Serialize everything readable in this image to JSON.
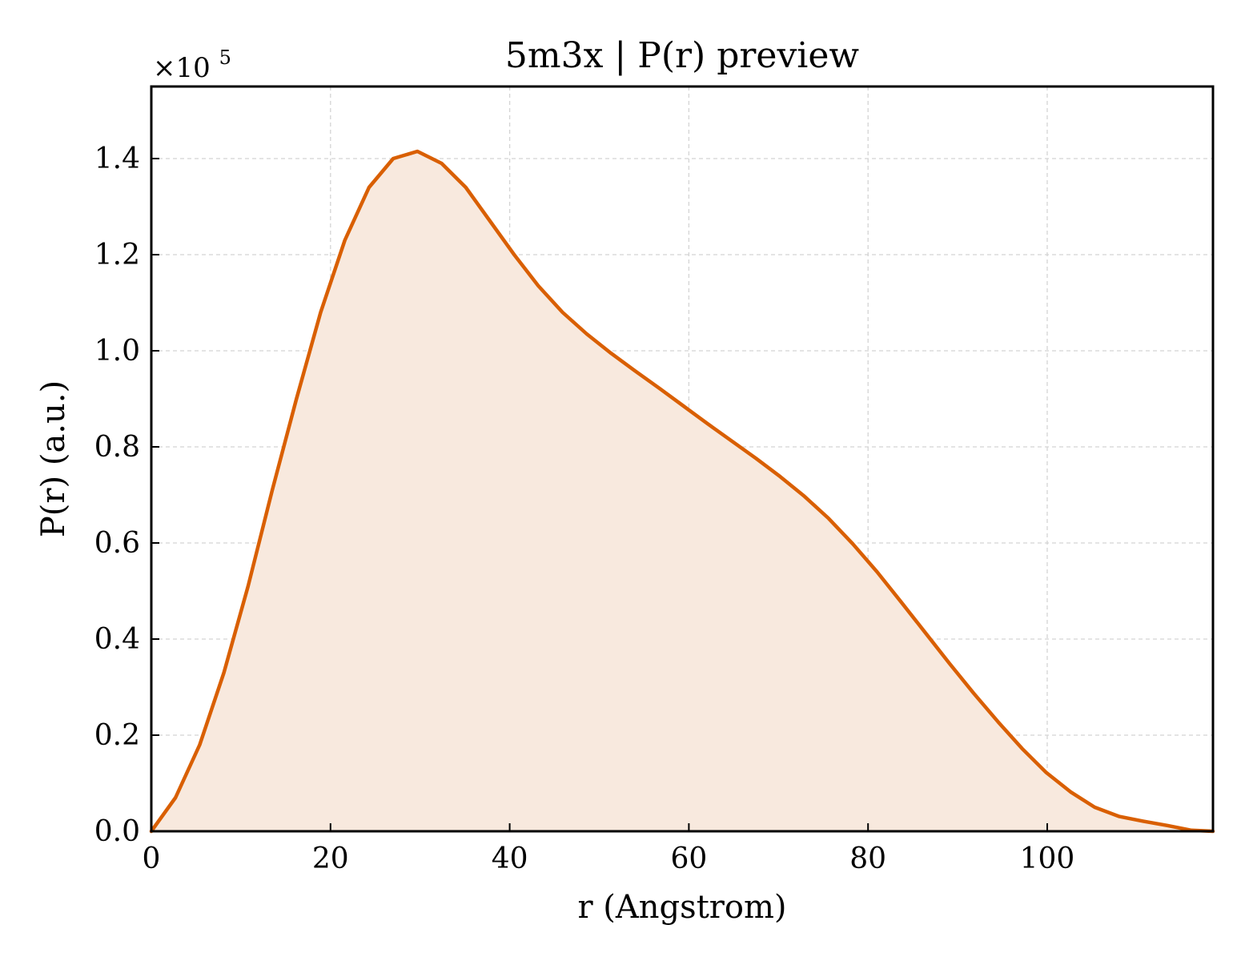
{
  "chart_data": {
    "type": "area",
    "title": "5m3x | P(r) preview",
    "xlabel": "r (Angstrom)",
    "ylabel": "P(r) (a.u.)",
    "y_multiplier_base": "×10",
    "y_multiplier_exponent": "5",
    "xlim": [
      0,
      118.5
    ],
    "ylim": [
      0,
      1.55
    ],
    "xticks": [
      0,
      20,
      40,
      60,
      80,
      100
    ],
    "xtick_labels": [
      "0",
      "20",
      "40",
      "60",
      "80",
      "100"
    ],
    "yticks": [
      0.0,
      0.2,
      0.4,
      0.6,
      0.8,
      1.0,
      1.2,
      1.4
    ],
    "ytick_labels": [
      "0.0",
      "0.2",
      "0.4",
      "0.6",
      "0.8",
      "1.0",
      "1.2",
      "1.4"
    ],
    "grid": true,
    "line_color": "#d95f02",
    "fill_color": "#f8e9de",
    "series": [
      {
        "x": [
          0,
          2.7,
          5.4,
          8.1,
          10.8,
          13.5,
          16.2,
          18.9,
          21.6,
          24.3,
          27.0,
          29.7,
          32.4,
          35.1,
          37.8,
          40.5,
          43.2,
          45.9,
          48.6,
          51.3,
          54.0,
          56.7,
          59.4,
          62.1,
          64.8,
          67.5,
          70.2,
          72.9,
          75.6,
          78.3,
          81.0,
          83.7,
          86.4,
          89.1,
          91.8,
          94.5,
          97.2,
          99.9,
          102.6,
          105.3,
          108.0,
          110.7,
          113.4,
          116.1,
          118.5
        ],
        "y": [
          0.0,
          0.07,
          0.18,
          0.33,
          0.51,
          0.71,
          0.9,
          1.08,
          1.23,
          1.34,
          1.4,
          1.415,
          1.39,
          1.34,
          1.27,
          1.2,
          1.135,
          1.08,
          1.035,
          0.995,
          0.958,
          0.922,
          0.885,
          0.848,
          0.812,
          0.776,
          0.738,
          0.697,
          0.651,
          0.598,
          0.54,
          0.477,
          0.413,
          0.349,
          0.287,
          0.228,
          0.172,
          0.122,
          0.082,
          0.05,
          0.031,
          0.021,
          0.012,
          0.002,
          0.0
        ]
      }
    ]
  }
}
